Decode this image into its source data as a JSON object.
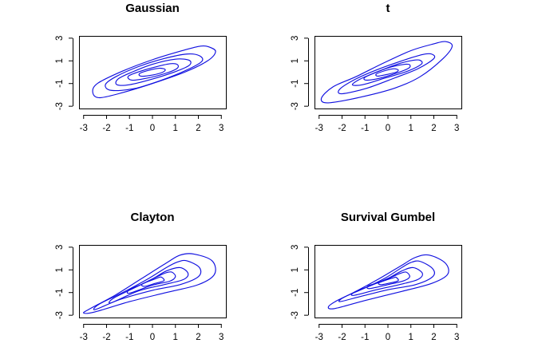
{
  "figure": {
    "background": "#ffffff",
    "contour_color": "#1010e0"
  },
  "chart_data": [
    {
      "type": "contour",
      "title": "Gaussian",
      "xlabel": "",
      "ylabel": "",
      "xlim": [
        -3.2,
        3.2
      ],
      "ylim": [
        -3.2,
        3.2
      ],
      "x_ticks": [
        -3,
        -2,
        -1,
        0,
        1,
        2,
        3
      ],
      "y_ticks": [
        -3,
        -1,
        1,
        3
      ],
      "x_tick_labels": [
        "-3",
        "-2",
        "-1",
        "0",
        "1",
        "2",
        "3"
      ],
      "y_tick_labels": [
        "-3",
        "-1",
        "1",
        "3"
      ],
      "grid": false,
      "legend": "none",
      "contour_levels": 5,
      "contours": [
        [
          [
            2.5,
            2.2
          ],
          [
            2.75,
            1.8
          ],
          [
            2.4,
            1.0
          ],
          [
            1.4,
            0.0
          ],
          [
            0.0,
            -1.0
          ],
          [
            -1.3,
            -1.8
          ],
          [
            -2.3,
            -2.25
          ],
          [
            -2.6,
            -1.8
          ],
          [
            -2.4,
            -1.0
          ],
          [
            -1.3,
            0.1
          ],
          [
            0.0,
            1.1
          ],
          [
            1.3,
            1.9
          ],
          [
            2.1,
            2.3
          ]
        ],
        [
          [
            2.05,
            1.45
          ],
          [
            2.15,
            0.95
          ],
          [
            1.5,
            0.2
          ],
          [
            0.4,
            -0.7
          ],
          [
            -0.8,
            -1.45
          ],
          [
            -1.8,
            -1.6
          ],
          [
            -2.05,
            -1.1
          ],
          [
            -1.6,
            -0.4
          ],
          [
            -0.6,
            0.5
          ],
          [
            0.5,
            1.2
          ],
          [
            1.5,
            1.6
          ]
        ],
        [
          [
            1.6,
            1.05
          ],
          [
            1.6,
            0.6
          ],
          [
            1.0,
            0.05
          ],
          [
            0.0,
            -0.6
          ],
          [
            -1.0,
            -1.1
          ],
          [
            -1.55,
            -1.1
          ],
          [
            -1.5,
            -0.6
          ],
          [
            -0.9,
            0.0
          ],
          [
            0.0,
            0.7
          ],
          [
            1.0,
            1.15
          ]
        ],
        [
          [
            1.1,
            0.65
          ],
          [
            1.05,
            0.3
          ],
          [
            0.5,
            -0.15
          ],
          [
            -0.3,
            -0.55
          ],
          [
            -0.9,
            -0.7
          ],
          [
            -1.05,
            -0.35
          ],
          [
            -0.5,
            0.1
          ],
          [
            0.2,
            0.5
          ],
          [
            0.8,
            0.75
          ]
        ],
        [
          [
            0.55,
            0.25
          ],
          [
            0.45,
            0.0
          ],
          [
            0.0,
            -0.25
          ],
          [
            -0.5,
            -0.35
          ],
          [
            -0.55,
            -0.1
          ],
          [
            -0.1,
            0.2
          ],
          [
            0.3,
            0.35
          ]
        ]
      ]
    },
    {
      "type": "contour",
      "title": "t",
      "xlabel": "",
      "ylabel": "",
      "xlim": [
        -3.2,
        3.2
      ],
      "ylim": [
        -3.2,
        3.2
      ],
      "x_ticks": [
        -3,
        -2,
        -1,
        0,
        1,
        2,
        3
      ],
      "y_ticks": [
        -3,
        -1,
        1,
        3
      ],
      "x_tick_labels": [
        "-3",
        "-2",
        "-1",
        "0",
        "1",
        "2",
        "3"
      ],
      "y_tick_labels": [
        "-3",
        "-1",
        "1",
        "3"
      ],
      "grid": false,
      "legend": "none",
      "contour_levels": 5,
      "contours": [
        [
          [
            2.5,
            2.7
          ],
          [
            2.8,
            2.3
          ],
          [
            2.4,
            1.2
          ],
          [
            1.4,
            -0.4
          ],
          [
            0.3,
            -1.4
          ],
          [
            -1.2,
            -2.2
          ],
          [
            -2.6,
            -2.7
          ],
          [
            -2.9,
            -2.3
          ],
          [
            -2.4,
            -1.3
          ],
          [
            -1.4,
            -0.4
          ],
          [
            -0.2,
            0.8
          ],
          [
            1.0,
            1.9
          ],
          [
            2.0,
            2.5
          ]
        ],
        [
          [
            1.9,
            1.6
          ],
          [
            2.0,
            1.2
          ],
          [
            1.3,
            0.3
          ],
          [
            0.3,
            -0.5
          ],
          [
            -0.9,
            -1.4
          ],
          [
            -2.0,
            -1.9
          ],
          [
            -2.1,
            -1.5
          ],
          [
            -1.4,
            -0.6
          ],
          [
            -0.5,
            0.2
          ],
          [
            0.6,
            1.0
          ],
          [
            1.5,
            1.55
          ]
        ],
        [
          [
            1.4,
            1.05
          ],
          [
            1.45,
            0.7
          ],
          [
            0.8,
            0.05
          ],
          [
            -0.1,
            -0.5
          ],
          [
            -1.1,
            -1.1
          ],
          [
            -1.55,
            -1.1
          ],
          [
            -1.2,
            -0.6
          ],
          [
            -0.5,
            0.0
          ],
          [
            0.4,
            0.7
          ],
          [
            1.1,
            1.05
          ]
        ],
        [
          [
            0.95,
            0.65
          ],
          [
            0.9,
            0.35
          ],
          [
            0.35,
            -0.1
          ],
          [
            -0.4,
            -0.55
          ],
          [
            -0.95,
            -0.7
          ],
          [
            -1.0,
            -0.45
          ],
          [
            -0.45,
            0.05
          ],
          [
            0.2,
            0.5
          ],
          [
            0.75,
            0.7
          ]
        ],
        [
          [
            0.45,
            0.2
          ],
          [
            0.35,
            0.0
          ],
          [
            -0.05,
            -0.2
          ],
          [
            -0.45,
            -0.35
          ],
          [
            -0.5,
            -0.15
          ],
          [
            -0.1,
            0.15
          ],
          [
            0.25,
            0.3
          ]
        ]
      ]
    },
    {
      "type": "contour",
      "title": "Clayton",
      "xlabel": "",
      "ylabel": "",
      "xlim": [
        -3.2,
        3.2
      ],
      "ylim": [
        -3.2,
        3.2
      ],
      "x_ticks": [
        -3,
        -2,
        -1,
        0,
        1,
        2,
        3
      ],
      "y_ticks": [
        -3,
        -1,
        1,
        3
      ],
      "x_tick_labels": [
        "-3",
        "-2",
        "-1",
        "0",
        "1",
        "2",
        "3"
      ],
      "y_tick_labels": [
        "-3",
        "-1",
        "1",
        "3"
      ],
      "grid": false,
      "legend": "none",
      "contour_levels": 5,
      "contours": [
        [
          [
            1.8,
            2.4
          ],
          [
            2.6,
            1.8
          ],
          [
            2.7,
            0.6
          ],
          [
            2.0,
            -0.3
          ],
          [
            0.6,
            -1.0
          ],
          [
            -1.0,
            -1.8
          ],
          [
            -2.5,
            -2.7
          ],
          [
            -3.0,
            -2.8
          ],
          [
            -2.7,
            -2.4
          ],
          [
            -1.6,
            -1.2
          ],
          [
            -0.5,
            0.2
          ],
          [
            0.6,
            1.6
          ],
          [
            1.2,
            2.3
          ]
        ],
        [
          [
            1.5,
            1.8
          ],
          [
            2.05,
            1.2
          ],
          [
            2.0,
            0.4
          ],
          [
            1.2,
            -0.3
          ],
          [
            0.0,
            -0.8
          ],
          [
            -1.4,
            -1.6
          ],
          [
            -2.5,
            -2.5
          ],
          [
            -2.3,
            -2.0
          ],
          [
            -1.2,
            -0.9
          ],
          [
            -0.2,
            0.2
          ],
          [
            0.6,
            1.2
          ],
          [
            1.1,
            1.7
          ]
        ],
        [
          [
            1.2,
            1.2
          ],
          [
            1.55,
            0.7
          ],
          [
            1.35,
            0.15
          ],
          [
            0.5,
            -0.3
          ],
          [
            -0.6,
            -0.85
          ],
          [
            -1.8,
            -1.9
          ],
          [
            -1.7,
            -1.5
          ],
          [
            -0.8,
            -0.6
          ],
          [
            0.0,
            0.2
          ],
          [
            0.6,
            0.9
          ]
        ],
        [
          [
            0.85,
            0.8
          ],
          [
            1.0,
            0.4
          ],
          [
            0.75,
            0.0
          ],
          [
            0.0,
            -0.35
          ],
          [
            -1.0,
            -1.05
          ],
          [
            -1.0,
            -0.75
          ],
          [
            -0.4,
            -0.2
          ],
          [
            0.2,
            0.4
          ],
          [
            0.6,
            0.75
          ]
        ],
        [
          [
            0.4,
            0.35
          ],
          [
            0.5,
            0.05
          ],
          [
            0.1,
            -0.2
          ],
          [
            -0.35,
            -0.45
          ],
          [
            -0.45,
            -0.25
          ],
          [
            0.05,
            0.15
          ],
          [
            0.3,
            0.35
          ]
        ]
      ]
    },
    {
      "type": "contour",
      "title": "Survival Gumbel",
      "xlabel": "",
      "ylabel": "",
      "xlim": [
        -3.2,
        3.2
      ],
      "ylim": [
        -3.2,
        3.2
      ],
      "x_ticks": [
        -3,
        -2,
        -1,
        0,
        1,
        2,
        3
      ],
      "y_ticks": [
        -3,
        -1,
        1,
        3
      ],
      "x_tick_labels": [
        "-3",
        "-2",
        "-1",
        "0",
        "1",
        "2",
        "3"
      ],
      "y_tick_labels": [
        "-3",
        "-1",
        "1",
        "3"
      ],
      "grid": false,
      "legend": "none",
      "contour_levels": 5,
      "contours": [
        [
          [
            1.8,
            2.3
          ],
          [
            2.5,
            1.6
          ],
          [
            2.6,
            0.6
          ],
          [
            1.9,
            -0.2
          ],
          [
            0.6,
            -0.9
          ],
          [
            -1.0,
            -1.7
          ],
          [
            -2.3,
            -2.4
          ],
          [
            -2.6,
            -2.3
          ],
          [
            -2.3,
            -1.8
          ],
          [
            -1.4,
            -0.9
          ],
          [
            -0.4,
            0.2
          ],
          [
            0.6,
            1.4
          ],
          [
            1.2,
            2.1
          ]
        ],
        [
          [
            1.4,
            1.75
          ],
          [
            1.95,
            1.1
          ],
          [
            1.95,
            0.4
          ],
          [
            1.2,
            -0.3
          ],
          [
            0.0,
            -0.75
          ],
          [
            -1.3,
            -1.4
          ],
          [
            -2.1,
            -1.8
          ],
          [
            -1.9,
            -1.4
          ],
          [
            -1.0,
            -0.6
          ],
          [
            -0.1,
            0.3
          ],
          [
            0.6,
            1.2
          ],
          [
            1.0,
            1.65
          ]
        ],
        [
          [
            1.1,
            1.2
          ],
          [
            1.5,
            0.7
          ],
          [
            1.3,
            0.15
          ],
          [
            0.5,
            -0.3
          ],
          [
            -0.5,
            -0.75
          ],
          [
            -1.5,
            -1.25
          ],
          [
            -1.45,
            -0.95
          ],
          [
            -0.7,
            -0.35
          ],
          [
            0.0,
            0.25
          ],
          [
            0.6,
            0.9
          ]
        ],
        [
          [
            0.8,
            0.8
          ],
          [
            0.95,
            0.4
          ],
          [
            0.7,
            0.05
          ],
          [
            0.0,
            -0.3
          ],
          [
            -0.8,
            -0.65
          ],
          [
            -0.85,
            -0.4
          ],
          [
            -0.3,
            -0.05
          ],
          [
            0.2,
            0.4
          ],
          [
            0.55,
            0.7
          ]
        ],
        [
          [
            0.35,
            0.35
          ],
          [
            0.45,
            0.05
          ],
          [
            0.1,
            -0.15
          ],
          [
            -0.3,
            -0.3
          ],
          [
            -0.4,
            -0.15
          ],
          [
            0.0,
            0.15
          ],
          [
            0.25,
            0.3
          ]
        ]
      ]
    }
  ]
}
